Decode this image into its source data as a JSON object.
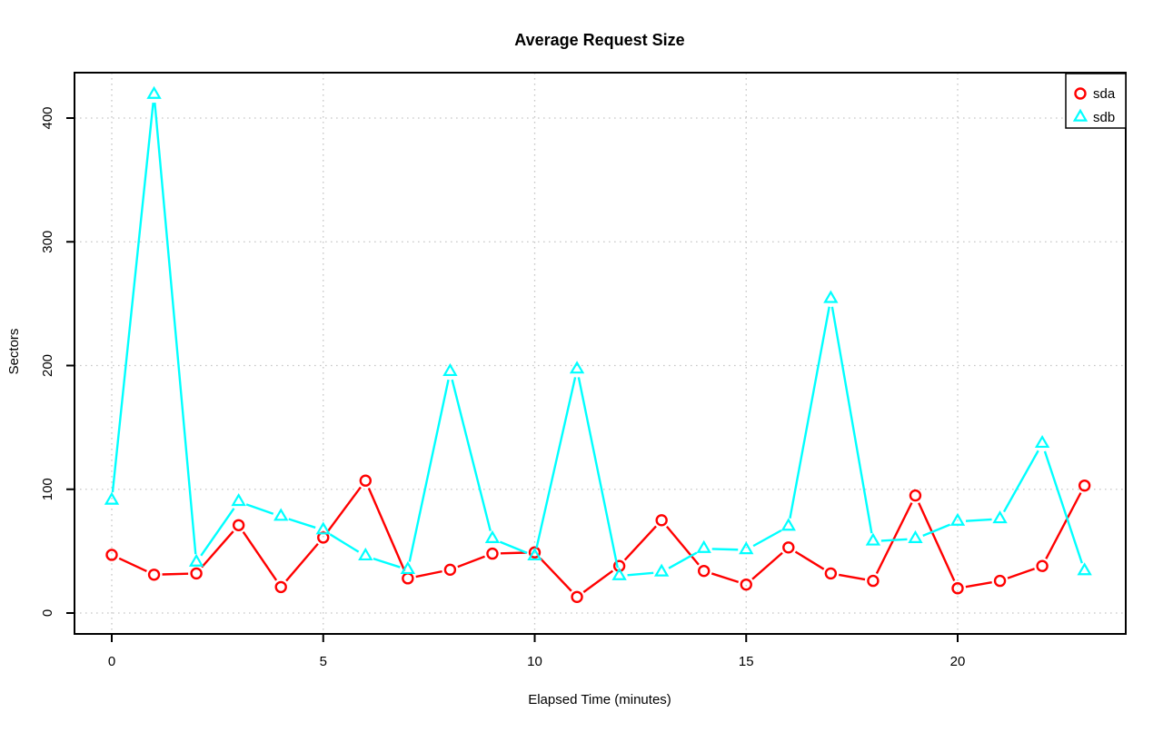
{
  "chart_data": {
    "type": "line",
    "title": "Average Request Size",
    "xlabel": "Elapsed Time (minutes)",
    "ylabel": "Sectors",
    "x": [
      0,
      1,
      2,
      3,
      4,
      5,
      6,
      7,
      8,
      9,
      10,
      11,
      12,
      13,
      14,
      15,
      16,
      17,
      18,
      19,
      20,
      21,
      22,
      23
    ],
    "series": [
      {
        "name": "sda",
        "color": "#FF0000",
        "marker": "circle",
        "values": [
          47,
          31,
          32,
          71,
          21,
          61,
          107,
          28,
          35,
          48,
          49,
          13,
          38,
          75,
          34,
          23,
          53,
          32,
          26,
          95,
          20,
          26,
          38,
          103
        ]
      },
      {
        "name": "sdb",
        "color": "#00FFFF",
        "marker": "triangle",
        "values": [
          91,
          419,
          41,
          90,
          78,
          67,
          46,
          35,
          195,
          60,
          46,
          197,
          30,
          33,
          52,
          51,
          70,
          254,
          58,
          60,
          74,
          76,
          137,
          34
        ]
      }
    ],
    "x_ticks": [
      0,
      5,
      10,
      15,
      20
    ],
    "y_ticks": [
      0,
      100,
      200,
      300,
      400
    ],
    "xlim": [
      -0.9,
      24.0
    ],
    "ylim": [
      -17,
      437
    ],
    "grid": true,
    "grid_style": "dotted",
    "grid_color": "#C6C6C6",
    "axis_color": "#000000",
    "background_color": "#FFFFFF",
    "legend_position": "top-right",
    "legend": [
      "sda",
      "sdb"
    ]
  }
}
